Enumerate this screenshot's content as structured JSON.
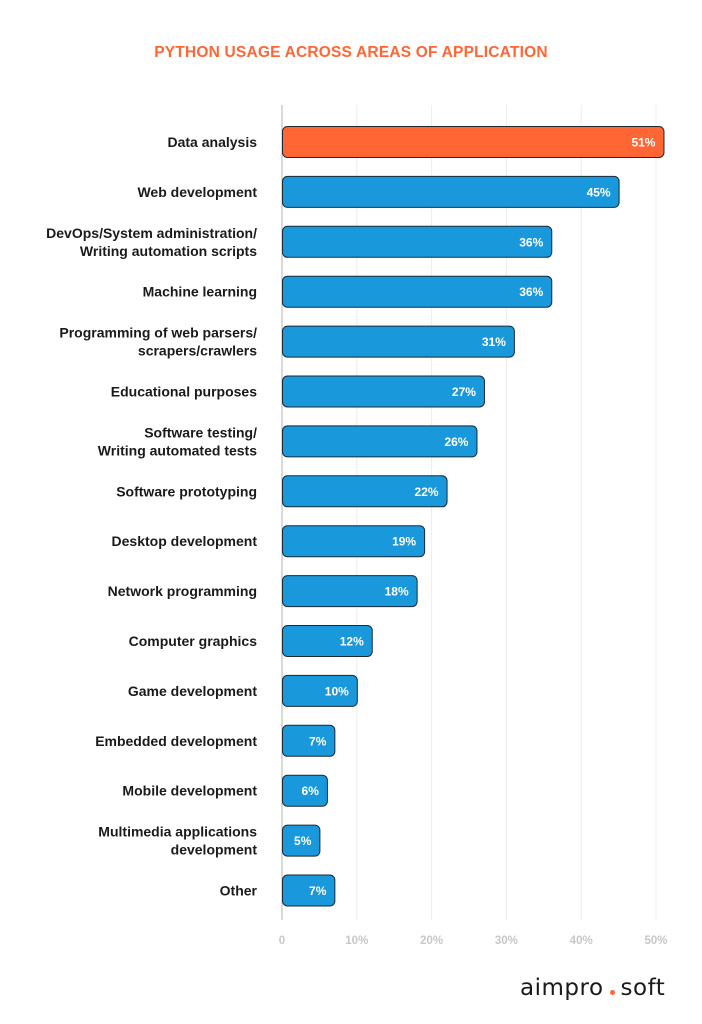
{
  "colors": {
    "highlight": "#ff6633",
    "bar": "#1a98dc",
    "stroke": "#1c2a33",
    "title": "#ff6633",
    "label": "#1a1a1a",
    "tick": "#c7c7c7",
    "grid": "#ececec",
    "value_text": "#ffffff"
  },
  "chart_data": {
    "type": "bar",
    "orientation": "horizontal",
    "title": "PYTHON USAGE ACROSS AREAS OF APPLICATION",
    "categories": [
      [
        "Data analysis"
      ],
      [
        "Web development"
      ],
      [
        "DevOps/System administration/",
        "Writing automation scripts"
      ],
      [
        "Machine learning"
      ],
      [
        "Programming of web parsers/",
        "scrapers/crawlers"
      ],
      [
        "Educational purposes"
      ],
      [
        "Software testing/",
        "Writing automated tests"
      ],
      [
        "Software prototyping"
      ],
      [
        "Desktop development"
      ],
      [
        "Network programming"
      ],
      [
        "Computer graphics"
      ],
      [
        "Game development"
      ],
      [
        "Embedded development"
      ],
      [
        "Mobile development"
      ],
      [
        "Multimedia applications",
        "development"
      ],
      [
        "Other"
      ]
    ],
    "values": [
      51,
      45,
      36,
      36,
      31,
      27,
      26,
      22,
      19,
      18,
      12,
      10,
      7,
      6,
      5,
      7
    ],
    "value_labels": [
      "51%",
      "45%",
      "36%",
      "36%",
      "31%",
      "27%",
      "26%",
      "22%",
      "19%",
      "18%",
      "12%",
      "10%",
      "7%",
      "6%",
      "5%",
      "7%"
    ],
    "highlight_index": 0,
    "xlim": [
      0,
      50
    ],
    "xticks": [
      0,
      10,
      20,
      30,
      40,
      50
    ],
    "xtick_labels": [
      "0",
      "10%",
      "20%",
      "30%",
      "40%",
      "50%"
    ],
    "grid": true,
    "xlabel": "",
    "ylabel": ""
  },
  "brand": {
    "left": "aimpro",
    "right": "soft"
  }
}
